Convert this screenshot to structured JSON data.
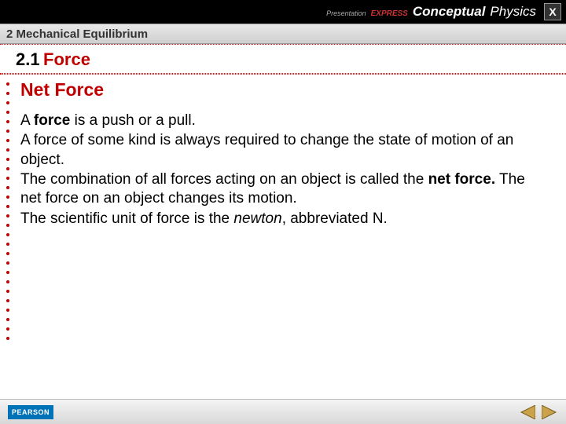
{
  "topbar": {
    "presentation_label": "Presentation",
    "express_label": "EXPRESS",
    "brand_conceptual": "Conceptual",
    "brand_physics": "Physics",
    "close_label": "X"
  },
  "chapter": {
    "number": "2",
    "title": "Mechanical Equilibrium"
  },
  "section": {
    "number": "2.1",
    "name": "Force"
  },
  "subtitle": "Net Force",
  "body": {
    "p1_pre": "A ",
    "p1_bold": "force",
    "p1_post": " is a push or a pull.",
    "p2": "A force of some kind is always required to change the state of motion of an object.",
    "p3_pre": "The combination of all forces acting on an object is called the ",
    "p3_bold": "net force.",
    "p3_post": " The net force on an object changes its motion.",
    "p4_pre": "The scientific unit of force is the ",
    "p4_italic": "newton",
    "p4_post": ", abbreviated N."
  },
  "footer": {
    "publisher": "PEARSON"
  },
  "colors": {
    "accent_red": "#c00000",
    "top_black": "#000000",
    "pearson_blue": "#0072b8"
  },
  "dot_count": 28
}
